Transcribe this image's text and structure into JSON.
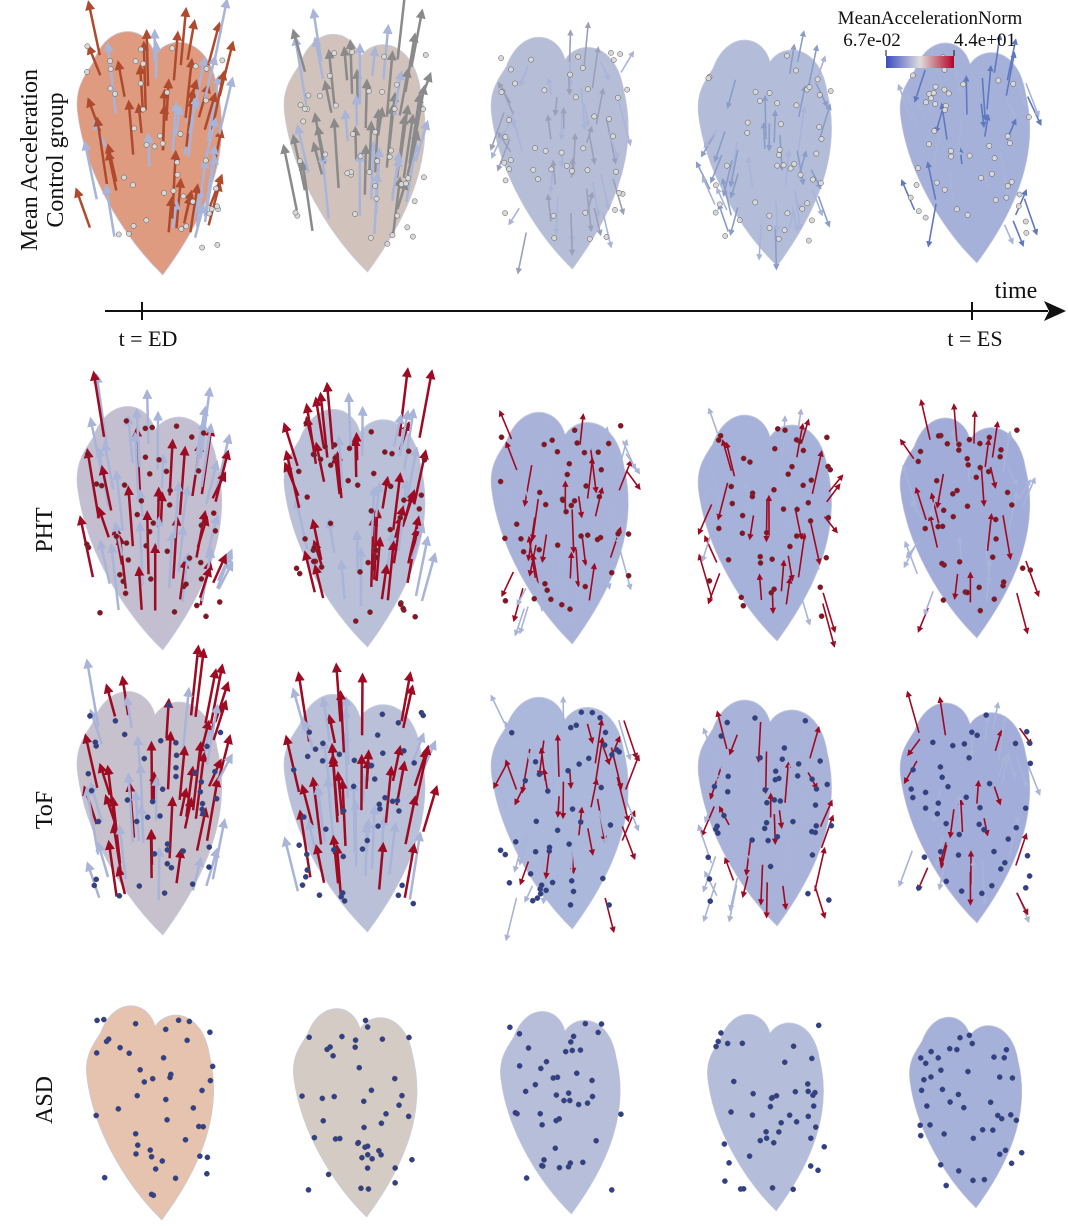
{
  "figure": {
    "colorbar": {
      "title": "MeanAccelerationNorm",
      "min_label": "6.7e-02",
      "max_label": "4.4e+01"
    },
    "rows": [
      {
        "label_lines": [
          "Mean Acceleration",
          "Control group"
        ]
      },
      {
        "label_lines": [
          "PHT"
        ]
      },
      {
        "label_lines": [
          "ToF"
        ]
      },
      {
        "label_lines": [
          "ASD"
        ]
      }
    ],
    "timeline": {
      "axis_label": "time",
      "start_label": "t = ED",
      "end_label": "t = ES"
    }
  }
}
